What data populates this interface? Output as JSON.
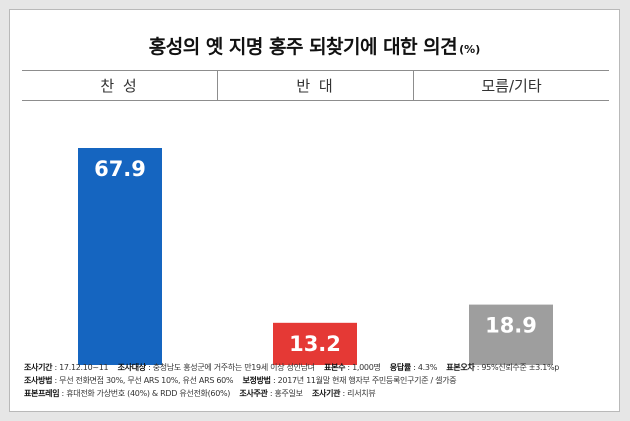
{
  "title": "홍성의 옛 지명 홍주 되찾기에 대한 의견",
  "unit": "(%)",
  "chart_data": {
    "type": "bar",
    "categories": [
      "찬 성",
      "반 대",
      "모름/기타"
    ],
    "values": [
      67.9,
      13.2,
      18.9
    ],
    "value_labels": [
      "67.9",
      "13.2",
      "18.9"
    ],
    "colors": [
      "#1565c0",
      "#e53935",
      "#9e9e9e"
    ],
    "ylim": [
      0,
      67.9
    ],
    "grid": false,
    "legend": "none"
  },
  "footer": {
    "line1": [
      {
        "label": "조사기간",
        "value": "17.12.10~11"
      },
      {
        "label": "조사대상",
        "value": "충청남도 홍성군에 거주하는 만19세 이상 성인남녀"
      },
      {
        "label": "표본수",
        "value": "1,000명"
      },
      {
        "label": "응답률",
        "value": "4.3%"
      },
      {
        "label": "표본오차",
        "value": "95%신뢰수준 ±3.1%p"
      }
    ],
    "line2": [
      {
        "label": "조사방법",
        "value": "무선 전화면접 30%, 무선 ARS 10%, 유선 ARS 60%"
      },
      {
        "label": "보정방법",
        "value": "2017년 11월말 현재 행자부 주민등록인구기준 / 셀가중"
      }
    ],
    "line3": [
      {
        "label": "표본프레임",
        "value": "휴대전화 가상번호 (40%) & RDD 유선전화(60%)"
      },
      {
        "label": "조사주관",
        "value": "홍주일보"
      },
      {
        "label": "조사기관",
        "value": "리서치뷰"
      }
    ]
  }
}
